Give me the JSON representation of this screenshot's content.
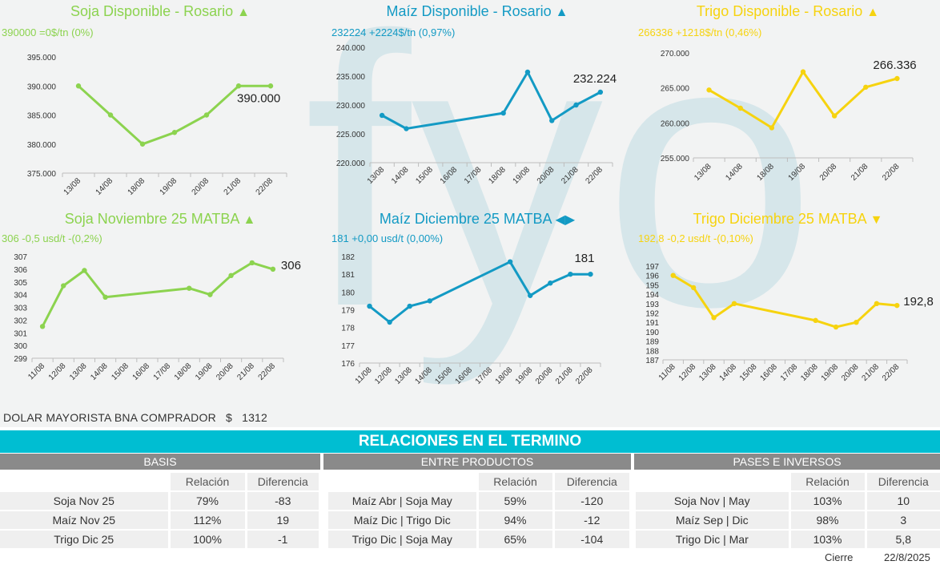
{
  "colors": {
    "soja": "#8cd34f",
    "maiz": "#139ac4",
    "trigo": "#f6d30f",
    "relaciones_bar": "#00bed2",
    "section_bar": "#8a8a8a",
    "watermark": "#cde2e8"
  },
  "watermark": "fyo",
  "chart_data": [
    {
      "type": "line",
      "title": "Soja Disponible - Rosario",
      "trend_icon": "▲",
      "subtitle": "390000 =0$/tn (0%)",
      "color": "#8cd34f",
      "categories": [
        "13/08",
        "14/08",
        "18/08",
        "19/08",
        "20/08",
        "21/08",
        "22/08"
      ],
      "values": [
        390000,
        385000,
        380000,
        382000,
        385000,
        390000,
        390000
      ],
      "yticks": [
        "395.000",
        "390.000",
        "385.000",
        "380.000",
        "375.000"
      ],
      "ylim": [
        375000,
        395000
      ],
      "last_label": "390.000"
    },
    {
      "type": "line",
      "title": "Maíz Disponible - Rosario",
      "trend_icon": "▲",
      "subtitle": "232224 +2224$/tn (0,97%)",
      "color": "#139ac4",
      "categories": [
        "13/08",
        "14/08",
        "15/08",
        "16/08",
        "17/08",
        "18/08",
        "19/08",
        "20/08",
        "21/08",
        "22/08"
      ],
      "values": [
        228200,
        225900,
        null,
        null,
        null,
        228600,
        235700,
        227300,
        230000,
        232224
      ],
      "yticks": [
        "240.000",
        "235.000",
        "230.000",
        "225.000",
        "220.000"
      ],
      "ylim": [
        220000,
        240000
      ],
      "last_label": "232.224"
    },
    {
      "type": "line",
      "title": "Trigo Disponible - Rosario",
      "trend_icon": "▲",
      "subtitle": "266336 +1218$/tn (0,46%)",
      "color": "#f6d30f",
      "categories": [
        "13/08",
        "14/08",
        "18/08",
        "19/08",
        "20/08",
        "21/08",
        "22/08"
      ],
      "values": [
        264700,
        262100,
        259300,
        267300,
        261000,
        265100,
        266336
      ],
      "yticks": [
        "270.000",
        "265.000",
        "260.000",
        "255.000"
      ],
      "ylim": [
        255000,
        270000
      ],
      "last_label": "266.336"
    },
    {
      "type": "line",
      "title": "Soja Noviembre 25 MATBA",
      "trend_icon": "▲",
      "subtitle": "306 -0,5 usd/t -(0,2%)",
      "color": "#8cd34f",
      "categories": [
        "11/08",
        "12/08",
        "13/08",
        "14/08",
        "15/08",
        "16/08",
        "17/08",
        "18/08",
        "19/08",
        "20/08",
        "21/08",
        "22/08"
      ],
      "values": [
        301.5,
        304.7,
        305.9,
        303.8,
        null,
        null,
        null,
        304.5,
        304.0,
        305.5,
        306.5,
        306.0
      ],
      "yticks": [
        "307",
        "306",
        "305",
        "304",
        "303",
        "302",
        "301",
        "300",
        "299"
      ],
      "ylim": [
        299,
        307
      ],
      "last_label": "306"
    },
    {
      "type": "line",
      "title": "Maíz Diciembre 25 MATBA",
      "trend_icon": "◀▶",
      "subtitle": "181 +0,00 usd/t (0,00%)",
      "color": "#139ac4",
      "categories": [
        "11/08",
        "12/08",
        "13/08",
        "14/08",
        "15/08",
        "16/08",
        "17/08",
        "18/08",
        "19/08",
        "20/08",
        "21/08",
        "22/08"
      ],
      "values": [
        179.2,
        178.3,
        179.2,
        179.5,
        null,
        null,
        null,
        181.7,
        179.8,
        180.5,
        181.0,
        181.0
      ],
      "yticks": [
        "182",
        "181",
        "180",
        "179",
        "178",
        "177",
        "176"
      ],
      "ylim": [
        176,
        182
      ],
      "last_label": "181"
    },
    {
      "type": "line",
      "title": "Trigo Diciembre 25 MATBA",
      "trend_icon": "▼",
      "subtitle": "192,8 -0,2 usd/t -(0,10%)",
      "color": "#f6d30f",
      "categories": [
        "11/08",
        "12/08",
        "13/08",
        "14/08",
        "15/08",
        "16/08",
        "17/08",
        "18/08",
        "19/08",
        "20/08",
        "21/08",
        "22/08"
      ],
      "values": [
        196.0,
        194.7,
        191.5,
        193.0,
        null,
        null,
        null,
        191.2,
        190.5,
        191.0,
        193.0,
        192.8
      ],
      "yticks": [
        "197",
        "196",
        "195",
        "194",
        "193",
        "192",
        "191",
        "190",
        "189",
        "188",
        "187"
      ],
      "ylim": [
        187,
        197
      ],
      "last_label": "192,8"
    }
  ],
  "dolar": {
    "label": "DOLAR MAYORISTA BNA COMPRADOR",
    "currency": "$",
    "value": "1312"
  },
  "relaciones": {
    "title": "RELACIONES EN EL TERMINO",
    "basis": {
      "title": "BASIS",
      "col_relacion": "Relación",
      "col_diferencia": "Diferencia",
      "rows": [
        {
          "label": "Soja Nov 25",
          "relacion": "79%",
          "diferencia": "-83"
        },
        {
          "label": "Maíz Nov 25",
          "relacion": "112%",
          "diferencia": "19"
        },
        {
          "label": "Trigo Dic 25",
          "relacion": "100%",
          "diferencia": "-1"
        }
      ]
    },
    "entre_productos": {
      "title": "ENTRE PRODUCTOS",
      "col_relacion": "Relación",
      "col_diferencia": "Diferencia",
      "rows": [
        {
          "label": "Maíz Abr | Soja May",
          "relacion": "59%",
          "diferencia": "-120"
        },
        {
          "label": "Maíz Dic | Trigo Dic",
          "relacion": "94%",
          "diferencia": "-12"
        },
        {
          "label": "Trigo Dic | Soja May",
          "relacion": "65%",
          "diferencia": "-104"
        }
      ]
    },
    "pases": {
      "title": "PASES E INVERSOS",
      "col_relacion": "Relación",
      "col_diferencia": "Diferencia",
      "rows": [
        {
          "label": "Soja Nov | May",
          "relacion": "103%",
          "diferencia": "10"
        },
        {
          "label": "Maíz Sep | Dic",
          "relacion": "98%",
          "diferencia": "3"
        },
        {
          "label": "Trigo Dic | Mar",
          "relacion": "103%",
          "diferencia": "5,8"
        }
      ]
    }
  },
  "footer": {
    "cierre_label": "Cierre",
    "date": "22/8/2025"
  }
}
